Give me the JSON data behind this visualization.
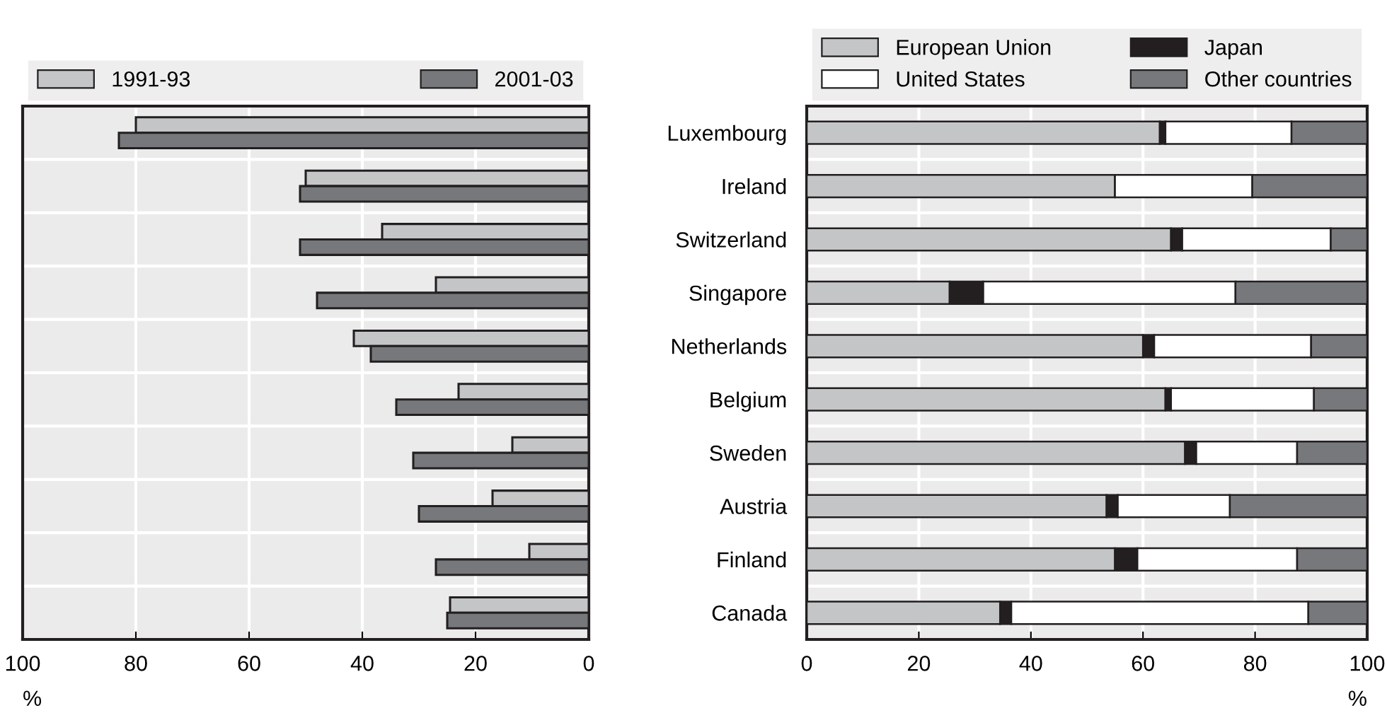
{
  "chart_data": [
    {
      "type": "bar",
      "orientation": "horizontal",
      "categories": [
        null,
        null,
        null,
        null,
        null,
        null,
        null,
        null,
        null,
        null
      ],
      "series": [
        {
          "name": "1991-93",
          "color": "#c4c5c7",
          "values": [
            80,
            50,
            36.5,
            27,
            41.5,
            23,
            13.5,
            17,
            10.5,
            24.5
          ]
        },
        {
          "name": "2001-03",
          "color": "#77787b",
          "values": [
            83,
            51,
            51,
            48,
            38.5,
            34,
            31,
            30,
            27,
            25
          ]
        }
      ],
      "xlim": [
        100,
        0
      ],
      "xticks": [
        100,
        80,
        60,
        40,
        20,
        0
      ],
      "xlabel": "%",
      "grid": "x",
      "legend": "top",
      "tick_labels": "x"
    },
    {
      "type": "bar",
      "orientation": "horizontal",
      "stacked": true,
      "categories": [
        "Luxembourg",
        "Ireland",
        "Switzerland",
        "Singapore",
        "Netherlands",
        "Belgium",
        "Sweden",
        "Austria",
        "Finland",
        "Canada"
      ],
      "series": [
        {
          "name": "European Union",
          "color": "#c4c5c7",
          "values": [
            63,
            55,
            65,
            25.5,
            60,
            64,
            67.5,
            53.5,
            55,
            34.5
          ]
        },
        {
          "name": "Japan",
          "color": "#231f20",
          "values": [
            1,
            0,
            2,
            6,
            2,
            1,
            2,
            2,
            4,
            2
          ]
        },
        {
          "name": "United States",
          "color": "#ffffff",
          "values": [
            22.5,
            24.5,
            26.5,
            45,
            28,
            25.5,
            18,
            20,
            28.5,
            53
          ]
        },
        {
          "name": "Other countries",
          "color": "#77787b",
          "values": [
            13.5,
            20.5,
            6.5,
            23.5,
            10,
            9.5,
            12.5,
            24.5,
            12.5,
            10.5
          ]
        }
      ],
      "xlim": [
        0,
        100
      ],
      "xticks": [
        0,
        20,
        40,
        60,
        80,
        100
      ],
      "xlabel": "%",
      "grid": "x",
      "legend": "top"
    }
  ]
}
